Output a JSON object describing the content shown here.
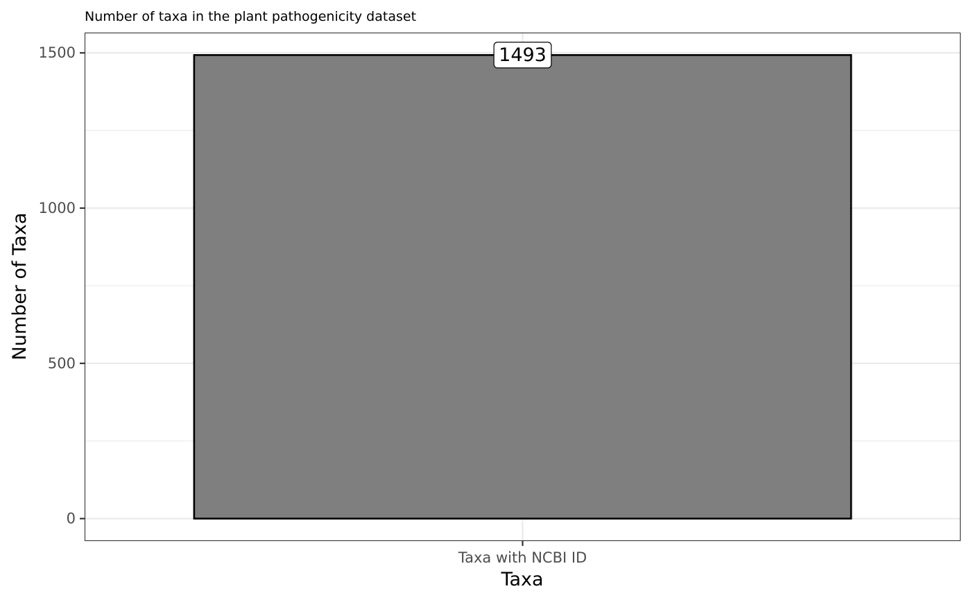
{
  "chart_data": {
    "type": "bar",
    "title": "Number of taxa in the plant pathogenicity dataset",
    "xlabel": "Taxa",
    "ylabel": "Number of Taxa",
    "categories": [
      "Taxa with NCBI ID"
    ],
    "values": [
      1493
    ],
    "data_labels": [
      "1493"
    ],
    "ylim": [
      -72.3,
      1565.3
    ],
    "y_ticks": [
      0,
      500,
      1000,
      1500
    ],
    "y_tick_labels": [
      "0",
      "500",
      "1000",
      "1500"
    ],
    "y_minor_ticks": [
      250,
      750,
      1250
    ],
    "grid": true,
    "legend": "none",
    "bar_fill": "#7f7f7f",
    "bar_stroke": "#000000",
    "grid_color": "#ebebeb",
    "panel_border": "#333333"
  }
}
